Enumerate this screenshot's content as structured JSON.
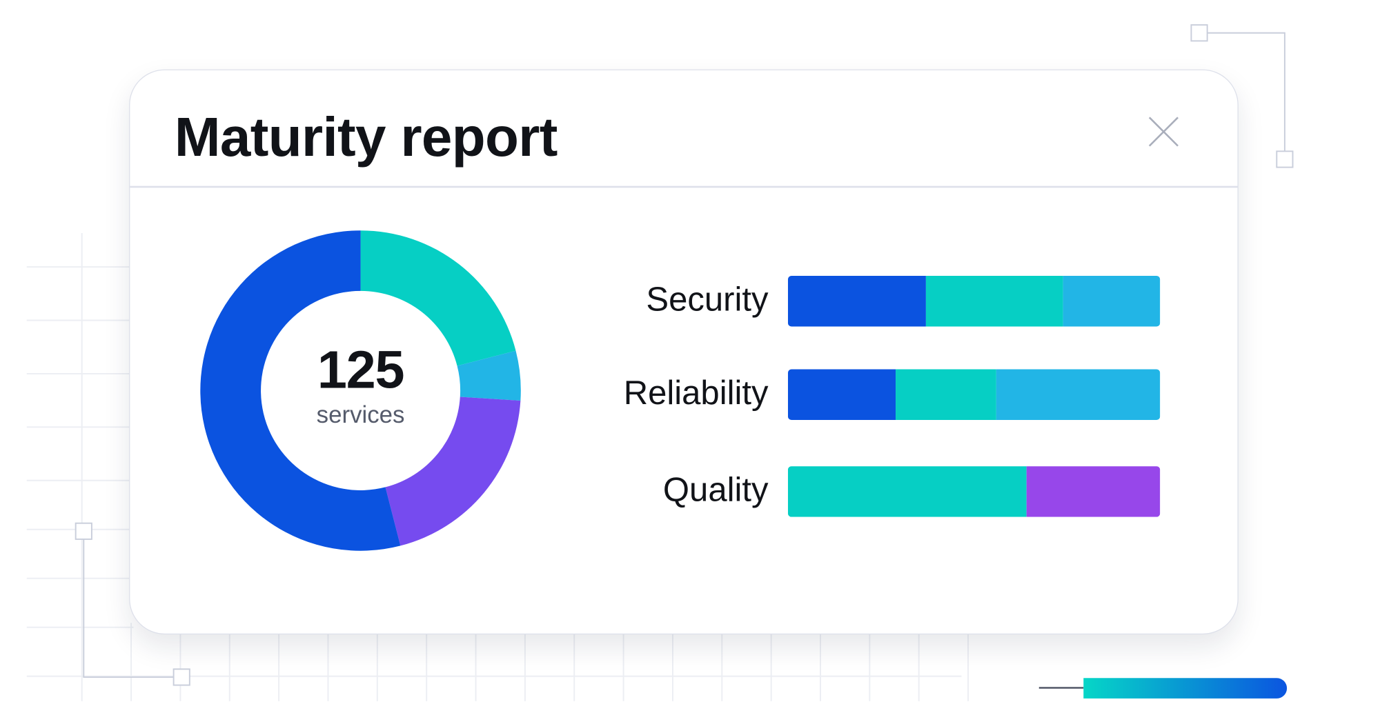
{
  "dialog": {
    "title": "Maturity report",
    "close_icon": "close-x-icon"
  },
  "colors": {
    "blue": "#0b53e0",
    "teal": "#06cfc4",
    "light_blue": "#22b5e6",
    "violet": "#764bef",
    "purple": "#9747ea",
    "gradient_start": "#06d6c7",
    "gradient_end": "#0b55e0"
  },
  "chart_data": [
    {
      "type": "pie",
      "style": "donut",
      "center_value": "125",
      "center_label": "services",
      "slices": [
        {
          "color": "#06cfc4",
          "fraction": 0.21
        },
        {
          "color": "#22b5e6",
          "fraction": 0.05
        },
        {
          "color": "#764bef",
          "fraction": 0.2
        },
        {
          "color": "#0b53e0",
          "fraction": 0.54
        }
      ]
    },
    {
      "type": "bar",
      "orientation": "horizontal",
      "stacked": true,
      "normalized": true,
      "categories": [
        "Security",
        "Reliability",
        "Quality"
      ],
      "rows": [
        {
          "label": "Security",
          "segments": [
            {
              "color": "#0b53e0",
              "fraction": 0.37
            },
            {
              "color": "#06cfc4",
              "fraction": 0.37
            },
            {
              "color": "#22b5e6",
              "fraction": 0.26
            }
          ]
        },
        {
          "label": "Reliability",
          "segments": [
            {
              "color": "#0b53e0",
              "fraction": 0.29
            },
            {
              "color": "#06cfc4",
              "fraction": 0.27
            },
            {
              "color": "#22b5e6",
              "fraction": 0.44
            }
          ]
        },
        {
          "label": "Quality",
          "segments": [
            {
              "color": "#06cfc4",
              "fraction": 0.64
            },
            {
              "color": "#9747ea",
              "fraction": 0.36
            }
          ]
        }
      ]
    }
  ]
}
